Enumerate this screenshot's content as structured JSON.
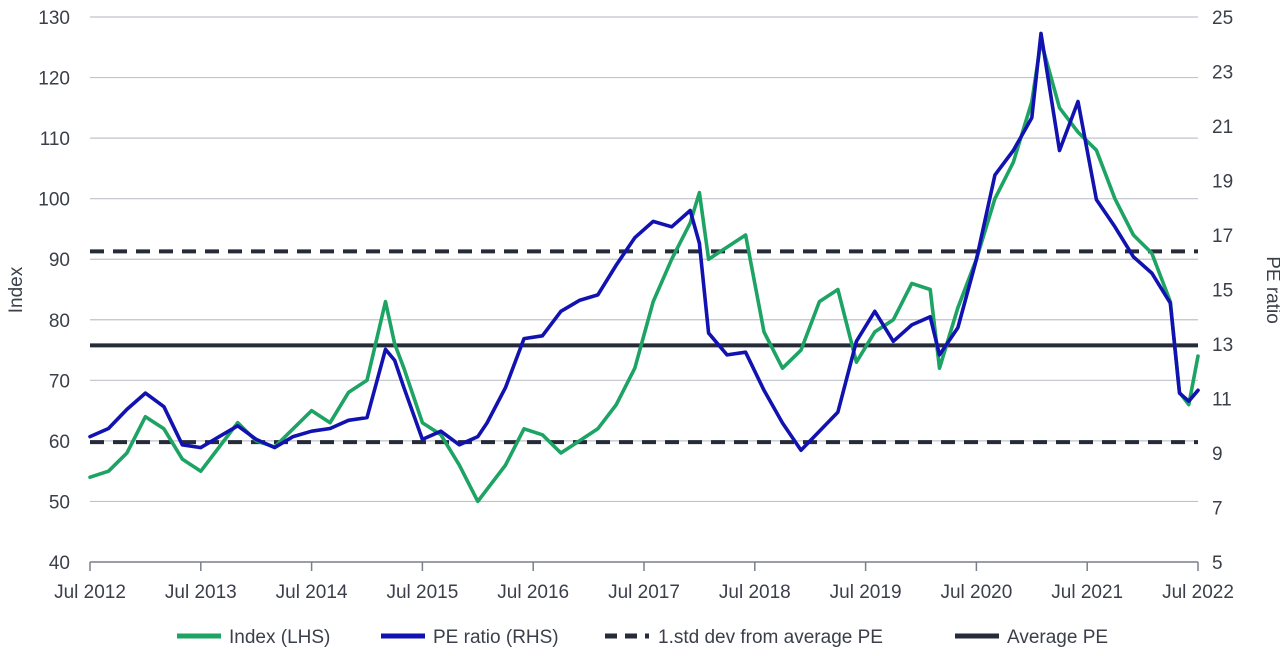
{
  "chart_data": {
    "type": "line",
    "title": "",
    "xlabel": "",
    "ylabel_left": "Index",
    "ylabel_right": "PE ratio",
    "ylim_left": [
      40,
      130
    ],
    "ylim_right": [
      5,
      25
    ],
    "xlim": [
      "2012-07",
      "2022-07"
    ],
    "x_ticks": [
      "Jul 2012",
      "Jul 2013",
      "Jul 2014",
      "Jul 2015",
      "Jul 2016",
      "Jul 2017",
      "Jul 2018",
      "Jul 2019",
      "Jul 2020",
      "Jul 2021",
      "Jul 2022"
    ],
    "y_ticks_left": [
      40,
      50,
      60,
      70,
      80,
      90,
      100,
      110,
      120,
      130
    ],
    "y_ticks_right": [
      5,
      7,
      9,
      11,
      13,
      15,
      17,
      19,
      21,
      23,
      25
    ],
    "grid": true,
    "legend_position": "bottom",
    "colors": {
      "index": "#1da363",
      "pe": "#1212b0",
      "reference": "#262b3a",
      "grid": "#c0c3cc",
      "text": "#3a3f4a"
    },
    "reference_lines": [
      {
        "name": "1.std dev from average PE",
        "style": "dashed",
        "axis": "right",
        "value": 16.4
      },
      {
        "name": "Average PE",
        "style": "solid",
        "axis": "right",
        "value": 12.95
      },
      {
        "name": "1.std dev from average PE",
        "style": "dashed",
        "axis": "right",
        "value": 9.4
      }
    ],
    "legend": [
      {
        "label": "Index (LHS)",
        "style": "line",
        "color": "#1da363"
      },
      {
        "label": "PE ratio (RHS)",
        "style": "line",
        "color": "#1212b0"
      },
      {
        "label": "1.std dev from average PE",
        "style": "dashed",
        "color": "#262b3a"
      },
      {
        "label": "Average PE",
        "style": "solid",
        "color": "#262b3a"
      }
    ],
    "series": [
      {
        "name": "Index (LHS)",
        "axis": "left",
        "x": [
          "2012-07",
          "2012-09",
          "2012-11",
          "2013-01",
          "2013-03",
          "2013-05",
          "2013-07",
          "2013-09",
          "2013-11",
          "2014-01",
          "2014-03",
          "2014-05",
          "2014-07",
          "2014-09",
          "2014-11",
          "2015-01",
          "2015-03",
          "2015-04",
          "2015-05",
          "2015-07",
          "2015-09",
          "2015-11",
          "2016-01",
          "2016-02",
          "2016-04",
          "2016-06",
          "2016-08",
          "2016-10",
          "2016-12",
          "2017-02",
          "2017-04",
          "2017-06",
          "2017-08",
          "2017-10",
          "2017-12",
          "2018-01",
          "2018-02",
          "2018-04",
          "2018-06",
          "2018-08",
          "2018-10",
          "2018-12",
          "2019-02",
          "2019-04",
          "2019-06",
          "2019-08",
          "2019-10",
          "2019-12",
          "2020-02",
          "2020-03",
          "2020-05",
          "2020-07",
          "2020-09",
          "2020-11",
          "2021-01",
          "2021-02",
          "2021-04",
          "2021-06",
          "2021-08",
          "2021-10",
          "2021-12",
          "2022-02",
          "2022-04",
          "2022-05",
          "2022-06",
          "2022-07"
        ],
        "values": [
          54,
          55,
          58,
          64,
          62,
          57,
          55,
          59,
          63,
          60,
          59,
          62,
          65,
          63,
          68,
          70,
          83,
          76,
          72,
          63,
          61,
          56,
          50,
          52,
          56,
          62,
          61,
          58,
          60,
          62,
          66,
          72,
          83,
          90,
          96,
          101,
          90,
          92,
          94,
          78,
          72,
          75,
          83,
          85,
          73,
          78,
          80,
          86,
          85,
          72,
          82,
          90,
          100,
          106,
          116,
          126,
          115,
          111,
          108,
          100,
          94,
          91,
          83,
          68,
          66,
          74
        ]
      },
      {
        "name": "PE ratio (RHS)",
        "axis": "right",
        "x": [
          "2012-07",
          "2012-09",
          "2012-11",
          "2013-01",
          "2013-03",
          "2013-05",
          "2013-07",
          "2013-09",
          "2013-11",
          "2014-01",
          "2014-03",
          "2014-05",
          "2014-07",
          "2014-09",
          "2014-11",
          "2015-01",
          "2015-03",
          "2015-04",
          "2015-05",
          "2015-07",
          "2015-09",
          "2015-11",
          "2016-01",
          "2016-02",
          "2016-04",
          "2016-06",
          "2016-08",
          "2016-10",
          "2016-12",
          "2017-02",
          "2017-04",
          "2017-06",
          "2017-08",
          "2017-10",
          "2017-12",
          "2018-01",
          "2018-02",
          "2018-04",
          "2018-06",
          "2018-08",
          "2018-10",
          "2018-12",
          "2019-02",
          "2019-04",
          "2019-06",
          "2019-08",
          "2019-10",
          "2019-12",
          "2020-02",
          "2020-03",
          "2020-05",
          "2020-07",
          "2020-09",
          "2020-11",
          "2021-01",
          "2021-02",
          "2021-04",
          "2021-06",
          "2021-08",
          "2021-10",
          "2021-12",
          "2022-02",
          "2022-04",
          "2022-05",
          "2022-06",
          "2022-07"
        ],
        "values": [
          9.6,
          9.9,
          10.6,
          11.2,
          10.7,
          9.3,
          9.2,
          9.6,
          10.0,
          9.5,
          9.2,
          9.6,
          9.8,
          9.9,
          10.2,
          10.3,
          12.8,
          12.4,
          11.4,
          9.5,
          9.8,
          9.3,
          9.6,
          10.1,
          11.4,
          13.2,
          13.3,
          14.2,
          14.6,
          14.8,
          15.9,
          16.9,
          17.5,
          17.3,
          17.9,
          16.7,
          13.4,
          12.6,
          12.7,
          11.3,
          10.1,
          9.1,
          9.8,
          10.5,
          13.1,
          14.2,
          13.1,
          13.7,
          14.0,
          12.6,
          13.6,
          16.1,
          19.2,
          20.1,
          21.3,
          24.4,
          20.1,
          21.9,
          18.3,
          17.3,
          16.2,
          15.6,
          14.5,
          11.2,
          10.9,
          11.3
        ]
      }
    ]
  }
}
